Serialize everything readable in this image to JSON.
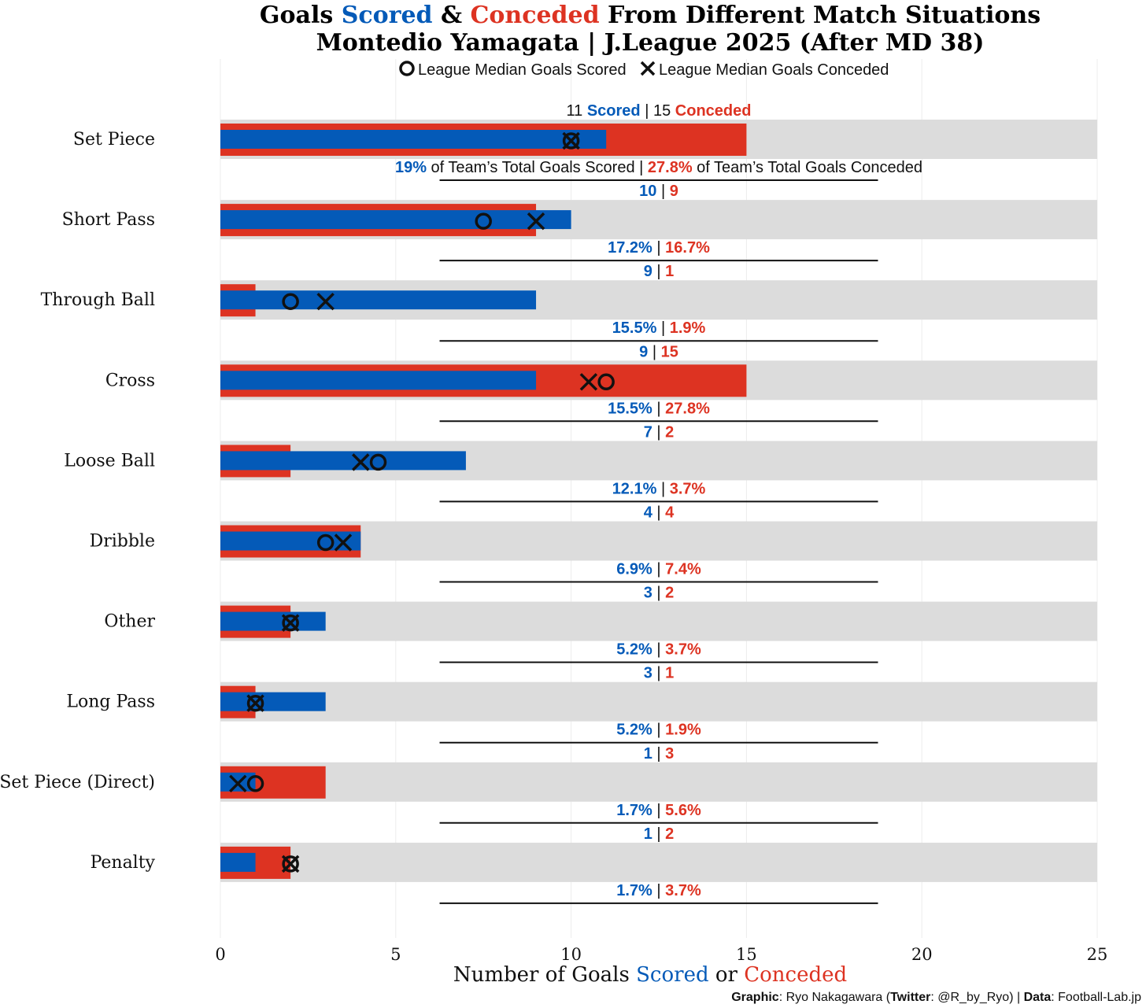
{
  "colors": {
    "scored": "#045AB8",
    "conceded": "#DD3322",
    "band": "#DCDCDC",
    "marker": "#111111"
  },
  "chart_data": {
    "type": "bar",
    "title": {
      "part1": "Goals ",
      "scored": "Scored",
      "part2": " & ",
      "conceded": "Conceded",
      "part3": " From Different Match Situations"
    },
    "subtitle": "Montedio Yamagata | J.League 2025 (After MD 38)",
    "legend": {
      "scored_median": "League Median Goals Scored",
      "conceded_median": "League Median Goals Conceded"
    },
    "xlabel": {
      "part1": "Number of Goals ",
      "scored": "Scored",
      "part2": " or ",
      "conceded": "Conceded"
    },
    "xlim": [
      0,
      25
    ],
    "xticks": [
      "0",
      "5",
      "10",
      "15",
      "20",
      "25"
    ],
    "first_label": {
      "scored_word": "Scored",
      "conceded_word": "Conceded",
      "scored_pct_suffix": " of Team’s Total Goals Scored",
      "conceded_pct_suffix": " of Team’s Total Goals Conceded"
    },
    "categories": [
      "Set Piece",
      "Short Pass",
      "Through Ball",
      "Cross",
      "Loose Ball",
      "Dribble",
      "Other",
      "Long Pass",
      "Set Piece (Direct)",
      "Penalty"
    ],
    "series": [
      {
        "name": "Scored",
        "values": [
          11,
          10,
          9,
          9,
          7,
          4,
          3,
          3,
          1,
          1
        ],
        "pct": [
          "19%",
          "17.2%",
          "15.5%",
          "15.5%",
          "12.1%",
          "6.9%",
          "5.2%",
          "5.2%",
          "1.7%",
          "1.7%"
        ]
      },
      {
        "name": "Conceded",
        "values": [
          15,
          9,
          1,
          15,
          2,
          4,
          2,
          1,
          3,
          2
        ],
        "pct": [
          "27.8%",
          "16.7%",
          "1.9%",
          "27.8%",
          "3.7%",
          "7.4%",
          "3.7%",
          "1.9%",
          "5.6%",
          "3.7%"
        ]
      },
      {
        "name": "League Median Goals Scored",
        "values": [
          10,
          7.5,
          2,
          11,
          4.5,
          3,
          2,
          1,
          1,
          2
        ]
      },
      {
        "name": "League Median Goals Conceded",
        "values": [
          10,
          9,
          3,
          10.5,
          4,
          3.5,
          2,
          1,
          0.5,
          2
        ]
      }
    ],
    "grid": true
  },
  "credit": {
    "graphic_label": "Graphic",
    "graphic_value": ": Ryo Nakagawara (",
    "twitter_label": "Twitter",
    "twitter_value": ": @R_by_Ryo) | ",
    "data_label": "Data",
    "data_value": ": Football-Lab.jp"
  }
}
